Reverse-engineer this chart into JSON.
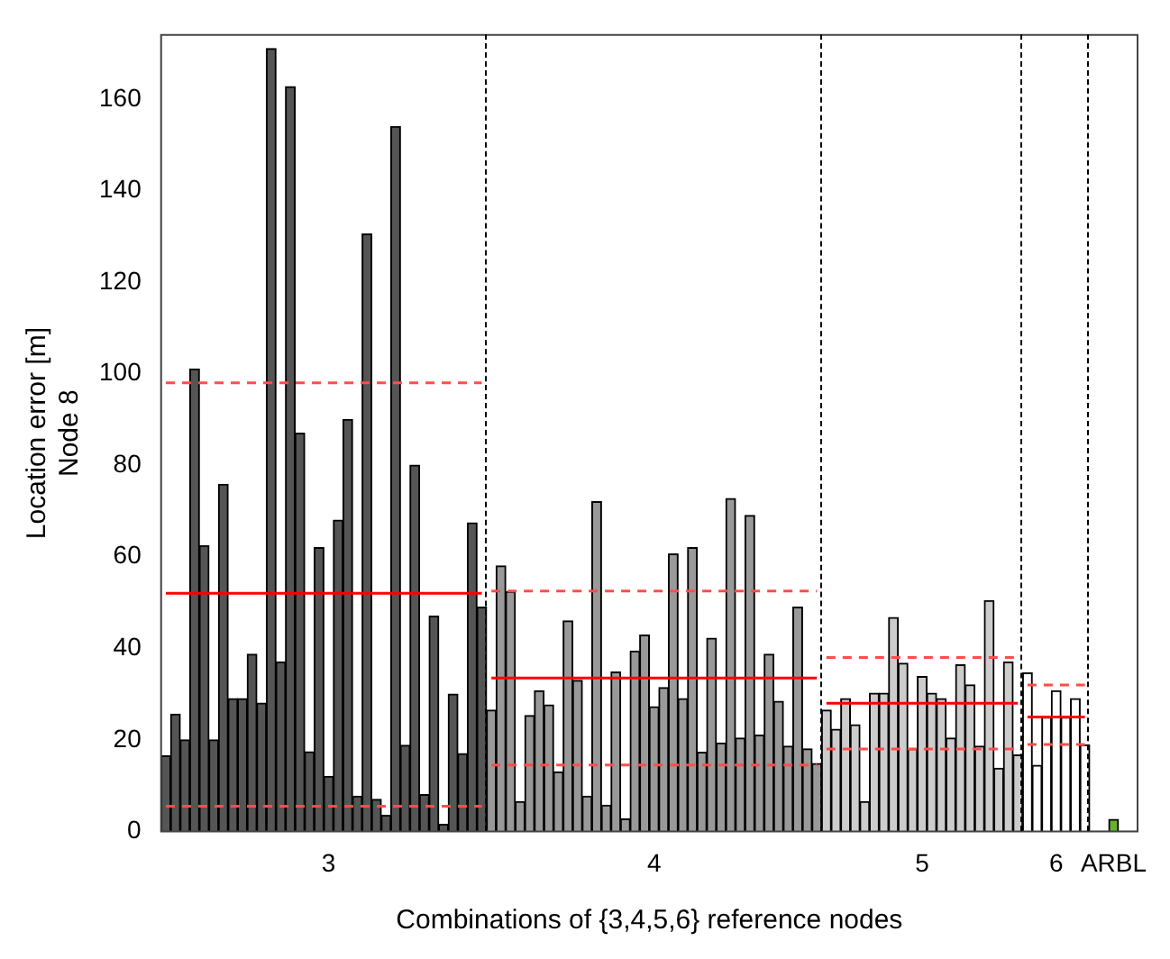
{
  "chart_data": {
    "type": "bar",
    "xlabel": "Combinations of {3,4,5,6} reference nodes",
    "ylabel": "Location error [m]\nNode 8",
    "categories": [
      null,
      null,
      null,
      null,
      null,
      null,
      null,
      null,
      null,
      null,
      null,
      null,
      null,
      null,
      null,
      null,
      null,
      "3",
      null,
      null,
      null,
      null,
      null,
      null,
      null,
      null,
      null,
      null,
      null,
      null,
      null,
      null,
      null,
      null,
      null,
      null,
      null,
      null,
      null,
      null,
      null,
      null,
      null,
      null,
      null,
      null,
      null,
      null,
      null,
      null,
      null,
      "4",
      null,
      null,
      null,
      null,
      null,
      null,
      null,
      null,
      null,
      null,
      null,
      null,
      null,
      null,
      null,
      null,
      null,
      null,
      null,
      null,
      null,
      null,
      null,
      null,
      null,
      null,
      null,
      "5",
      null,
      null,
      null,
      null,
      null,
      null,
      null,
      null,
      null,
      null,
      null,
      null,
      null,
      "6",
      null,
      null,
      null,
      null,
      null,
      "ARBL",
      null,
      null
    ],
    "ylim": [
      0,
      174
    ],
    "yticks": [
      0,
      20,
      40,
      60,
      80,
      100,
      120,
      140,
      160
    ],
    "grid": false,
    "legend": false,
    "series": [
      {
        "colors": [
          "#555555",
          "#555555",
          "#555555",
          "#555555",
          "#555555",
          "#555555",
          "#555555",
          "#555555",
          "#555555",
          "#555555",
          "#555555",
          "#555555",
          "#555555",
          "#555555",
          "#555555",
          "#555555",
          "#555555",
          "#555555",
          "#555555",
          "#555555",
          "#555555",
          "#555555",
          "#555555",
          "#555555",
          "#555555",
          "#555555",
          "#555555",
          "#555555",
          "#555555",
          "#555555",
          "#555555",
          "#555555",
          "#555555",
          "#555555",
          "#999999",
          "#999999",
          "#999999",
          "#999999",
          "#999999",
          "#999999",
          "#999999",
          "#999999",
          "#999999",
          "#999999",
          "#999999",
          "#999999",
          "#999999",
          "#999999",
          "#999999",
          "#999999",
          "#999999",
          "#999999",
          "#999999",
          "#999999",
          "#999999",
          "#999999",
          "#999999",
          "#999999",
          "#999999",
          "#999999",
          "#999999",
          "#999999",
          "#999999",
          "#999999",
          "#999999",
          "#999999",
          "#999999",
          "#999999",
          "#999999",
          "#cccccc",
          "#cccccc",
          "#cccccc",
          "#cccccc",
          "#cccccc",
          "#cccccc",
          "#cccccc",
          "#cccccc",
          "#cccccc",
          "#cccccc",
          "#cccccc",
          "#cccccc",
          "#cccccc",
          "#cccccc",
          "#cccccc",
          "#cccccc",
          "#cccccc",
          "#cccccc",
          "#cccccc",
          "#cccccc",
          "#cccccc",
          "#ffffff",
          "#ffffff",
          "#ffffff",
          "#ffffff",
          "#ffffff",
          "#ffffff",
          "#ffffff",
          "#ffffff",
          "#ffffff",
          "#66b032",
          "#ffffff",
          "#ffffff"
        ],
        "values": [
          16.5,
          25.6,
          20,
          101,
          62.4,
          20,
          75.8,
          29,
          29,
          38.7,
          28,
          171,
          37,
          162.7,
          87,
          17.4,
          62,
          12,
          68,
          90,
          7.7,
          130.5,
          7,
          3.5,
          154,
          18.8,
          80,
          8,
          47,
          1.5,
          30,
          17,
          67.4,
          49,
          26.5,
          58,
          52.4,
          6.5,
          25.3,
          30.7,
          27.6,
          13,
          46,
          33,
          7.7,
          72,
          5.7,
          34.8,
          2.7,
          39.4,
          42.9,
          27.2,
          31.4,
          60.6,
          29,
          62,
          17.3,
          42.2,
          19.3,
          72.7,
          20.4,
          69,
          21,
          38.7,
          28.4,
          18.6,
          49,
          18,
          14.8,
          26.5,
          22.3,
          29,
          23.3,
          6.5,
          30.2,
          30.2,
          46.7,
          36.7,
          18,
          33.8,
          30.2,
          29,
          20.4,
          36.4,
          32,
          18.6,
          50.4,
          13.8,
          37,
          16.7,
          34.6,
          14.4,
          24.9,
          30.7,
          24.9,
          29,
          18.9,
          null,
          null,
          2.6,
          null,
          null
        ]
      },
      {
        "type": "line",
        "color": "#ff0000",
        "line_style": "solid",
        "values": [
          52,
          52,
          52,
          52,
          52,
          52,
          52,
          52,
          52,
          52,
          52,
          52,
          52,
          52,
          52,
          52,
          52,
          52,
          52,
          52,
          52,
          52,
          52,
          52,
          52,
          52,
          52,
          52,
          52,
          52,
          52,
          52,
          52,
          52,
          null,
          null,
          null,
          null,
          null,
          null,
          null,
          null,
          null,
          null,
          null,
          null,
          null,
          null,
          null,
          null,
          null,
          null,
          null,
          null,
          null,
          null,
          null,
          null,
          null,
          null,
          null,
          null,
          null,
          null,
          null,
          null,
          null,
          null,
          null,
          null,
          null,
          null,
          null,
          null,
          null,
          null,
          null,
          null,
          null,
          null,
          null,
          null,
          null,
          null,
          null,
          null,
          null,
          null,
          null,
          null,
          null,
          null,
          null,
          null,
          null,
          null,
          null,
          null,
          null,
          null,
          null,
          null
        ]
      },
      {
        "type": "line",
        "color": "#ff4d4d",
        "line_style": "dashed",
        "values": [
          98,
          98,
          98,
          98,
          98,
          98,
          98,
          98,
          98,
          98,
          98,
          98,
          98,
          98,
          98,
          98,
          98,
          98,
          98,
          98,
          98,
          98,
          98,
          98,
          98,
          98,
          98,
          98,
          98,
          98,
          98,
          98,
          98,
          98,
          null,
          null,
          null,
          null,
          null,
          null,
          null,
          null,
          null,
          null,
          null,
          null,
          null,
          null,
          null,
          null,
          null,
          null,
          null,
          null,
          null,
          null,
          null,
          null,
          null,
          null,
          null,
          null,
          null,
          null,
          null,
          null,
          null,
          null,
          null,
          null,
          null,
          null,
          null,
          null,
          null,
          null,
          null,
          null,
          null,
          null,
          null,
          null,
          null,
          null,
          null,
          null,
          null,
          null,
          null,
          null,
          null,
          null,
          null,
          null,
          null,
          null,
          null,
          null,
          null,
          null,
          null,
          null
        ]
      },
      {
        "type": "line",
        "color": "#ff4d4d",
        "line_style": "dashed",
        "values": [
          5.5,
          5.5,
          5.5,
          5.5,
          5.5,
          5.5,
          5.5,
          5.5,
          5.5,
          5.5,
          5.5,
          5.5,
          5.5,
          5.5,
          5.5,
          5.5,
          5.5,
          5.5,
          5.5,
          5.5,
          5.5,
          5.5,
          5.5,
          5.5,
          5.5,
          5.5,
          5.5,
          5.5,
          5.5,
          5.5,
          5.5,
          5.5,
          5.5,
          5.5,
          null,
          null,
          null,
          null,
          null,
          null,
          null,
          null,
          null,
          null,
          null,
          null,
          null,
          null,
          null,
          null,
          null,
          null,
          null,
          null,
          null,
          null,
          null,
          null,
          null,
          null,
          null,
          null,
          null,
          null,
          null,
          null,
          null,
          null,
          null,
          null,
          null,
          null,
          null,
          null,
          null,
          null,
          null,
          null,
          null,
          null,
          null,
          null,
          null,
          null,
          null,
          null,
          null,
          null,
          null,
          null,
          null,
          null,
          null,
          null,
          null,
          null,
          null,
          null,
          null,
          null,
          null,
          null
        ]
      },
      {
        "type": "line",
        "color": "#ff0000",
        "line_style": "solid",
        "values": [
          null,
          null,
          null,
          null,
          null,
          null,
          null,
          null,
          null,
          null,
          null,
          null,
          null,
          null,
          null,
          null,
          null,
          null,
          null,
          null,
          null,
          null,
          null,
          null,
          null,
          null,
          null,
          null,
          null,
          null,
          null,
          null,
          null,
          null,
          33.5,
          33.5,
          33.5,
          33.5,
          33.5,
          33.5,
          33.5,
          33.5,
          33.5,
          33.5,
          33.5,
          33.5,
          33.5,
          33.5,
          33.5,
          33.5,
          33.5,
          33.5,
          33.5,
          33.5,
          33.5,
          33.5,
          33.5,
          33.5,
          33.5,
          33.5,
          33.5,
          33.5,
          33.5,
          33.5,
          33.5,
          33.5,
          33.5,
          33.5,
          33.5,
          null,
          null,
          null,
          null,
          null,
          null,
          null,
          null,
          null,
          null,
          null,
          null,
          null,
          null,
          null,
          null,
          null,
          null,
          null,
          null,
          null,
          null,
          null,
          null,
          null,
          null,
          null,
          null,
          null,
          null,
          null,
          null,
          null
        ]
      },
      {
        "type": "line",
        "color": "#ff4d4d",
        "line_style": "dashed",
        "values": [
          null,
          null,
          null,
          null,
          null,
          null,
          null,
          null,
          null,
          null,
          null,
          null,
          null,
          null,
          null,
          null,
          null,
          null,
          null,
          null,
          null,
          null,
          null,
          null,
          null,
          null,
          null,
          null,
          null,
          null,
          null,
          null,
          null,
          null,
          52.5,
          52.5,
          52.5,
          52.5,
          52.5,
          52.5,
          52.5,
          52.5,
          52.5,
          52.5,
          52.5,
          52.5,
          52.5,
          52.5,
          52.5,
          52.5,
          52.5,
          52.5,
          52.5,
          52.5,
          52.5,
          52.5,
          52.5,
          52.5,
          52.5,
          52.5,
          52.5,
          52.5,
          52.5,
          52.5,
          52.5,
          52.5,
          52.5,
          52.5,
          52.5,
          null,
          null,
          null,
          null,
          null,
          null,
          null,
          null,
          null,
          null,
          null,
          null,
          null,
          null,
          null,
          null,
          null,
          null,
          null,
          null,
          null,
          null,
          null,
          null,
          null,
          null,
          null,
          null,
          null,
          null,
          null,
          null,
          null
        ]
      },
      {
        "type": "line",
        "color": "#ff4d4d",
        "line_style": "dashed",
        "values": [
          null,
          null,
          null,
          null,
          null,
          null,
          null,
          null,
          null,
          null,
          null,
          null,
          null,
          null,
          null,
          null,
          null,
          null,
          null,
          null,
          null,
          null,
          null,
          null,
          null,
          null,
          null,
          null,
          null,
          null,
          null,
          null,
          null,
          null,
          14.5,
          14.5,
          14.5,
          14.5,
          14.5,
          14.5,
          14.5,
          14.5,
          14.5,
          14.5,
          14.5,
          14.5,
          14.5,
          14.5,
          14.5,
          14.5,
          14.5,
          14.5,
          14.5,
          14.5,
          14.5,
          14.5,
          14.5,
          14.5,
          14.5,
          14.5,
          14.5,
          14.5,
          14.5,
          14.5,
          14.5,
          14.5,
          14.5,
          14.5,
          14.5,
          null,
          null,
          null,
          null,
          null,
          null,
          null,
          null,
          null,
          null,
          null,
          null,
          null,
          null,
          null,
          null,
          null,
          null,
          null,
          null,
          null,
          null,
          null,
          null,
          null,
          null,
          null,
          null,
          null,
          null,
          null,
          null,
          null
        ]
      },
      {
        "type": "line",
        "color": "#ff0000",
        "line_style": "solid",
        "values": [
          null,
          null,
          null,
          null,
          null,
          null,
          null,
          null,
          null,
          null,
          null,
          null,
          null,
          null,
          null,
          null,
          null,
          null,
          null,
          null,
          null,
          null,
          null,
          null,
          null,
          null,
          null,
          null,
          null,
          null,
          null,
          null,
          null,
          null,
          null,
          null,
          null,
          null,
          null,
          null,
          null,
          null,
          null,
          null,
          null,
          null,
          null,
          null,
          null,
          null,
          null,
          null,
          null,
          null,
          null,
          null,
          null,
          null,
          null,
          null,
          null,
          null,
          null,
          null,
          null,
          null,
          null,
          null,
          null,
          28,
          28,
          28,
          28,
          28,
          28,
          28,
          28,
          28,
          28,
          28,
          28,
          28,
          28,
          28,
          28,
          28,
          28,
          28,
          28,
          28,
          null,
          null,
          null,
          null,
          null,
          null,
          null,
          null,
          null,
          null,
          null,
          null
        ]
      },
      {
        "type": "line",
        "color": "#ff4d4d",
        "line_style": "dashed",
        "values": [
          null,
          null,
          null,
          null,
          null,
          null,
          null,
          null,
          null,
          null,
          null,
          null,
          null,
          null,
          null,
          null,
          null,
          null,
          null,
          null,
          null,
          null,
          null,
          null,
          null,
          null,
          null,
          null,
          null,
          null,
          null,
          null,
          null,
          null,
          null,
          null,
          null,
          null,
          null,
          null,
          null,
          null,
          null,
          null,
          null,
          null,
          null,
          null,
          null,
          null,
          null,
          null,
          null,
          null,
          null,
          null,
          null,
          null,
          null,
          null,
          null,
          null,
          null,
          null,
          null,
          null,
          null,
          null,
          null,
          38,
          38,
          38,
          38,
          38,
          38,
          38,
          38,
          38,
          38,
          38,
          38,
          38,
          38,
          38,
          38,
          38,
          38,
          38,
          38,
          38,
          null,
          null,
          null,
          null,
          null,
          null,
          null,
          null,
          null,
          null,
          null,
          null
        ]
      },
      {
        "type": "line",
        "color": "#ff4d4d",
        "line_style": "dashed",
        "values": [
          null,
          null,
          null,
          null,
          null,
          null,
          null,
          null,
          null,
          null,
          null,
          null,
          null,
          null,
          null,
          null,
          null,
          null,
          null,
          null,
          null,
          null,
          null,
          null,
          null,
          null,
          null,
          null,
          null,
          null,
          null,
          null,
          null,
          null,
          null,
          null,
          null,
          null,
          null,
          null,
          null,
          null,
          null,
          null,
          null,
          null,
          null,
          null,
          null,
          null,
          null,
          null,
          null,
          null,
          null,
          null,
          null,
          null,
          null,
          null,
          null,
          null,
          null,
          null,
          null,
          null,
          null,
          null,
          null,
          18,
          18,
          18,
          18,
          18,
          18,
          18,
          18,
          18,
          18,
          18,
          18,
          18,
          18,
          18,
          18,
          18,
          18,
          18,
          18,
          18,
          null,
          null,
          null,
          null,
          null,
          null,
          null,
          null,
          null,
          null,
          null,
          null
        ]
      },
      {
        "type": "line",
        "color": "#ff0000",
        "line_style": "solid",
        "values": [
          null,
          null,
          null,
          null,
          null,
          null,
          null,
          null,
          null,
          null,
          null,
          null,
          null,
          null,
          null,
          null,
          null,
          null,
          null,
          null,
          null,
          null,
          null,
          null,
          null,
          null,
          null,
          null,
          null,
          null,
          null,
          null,
          null,
          null,
          null,
          null,
          null,
          null,
          null,
          null,
          null,
          null,
          null,
          null,
          null,
          null,
          null,
          null,
          null,
          null,
          null,
          null,
          null,
          null,
          null,
          null,
          null,
          null,
          null,
          null,
          null,
          null,
          null,
          null,
          null,
          null,
          null,
          null,
          null,
          null,
          null,
          null,
          null,
          null,
          null,
          null,
          null,
          null,
          null,
          null,
          null,
          null,
          null,
          null,
          null,
          null,
          null,
          null,
          null,
          null,
          25,
          25,
          25,
          25,
          25,
          25,
          25,
          null,
          null,
          null,
          null,
          null
        ]
      },
      {
        "type": "line",
        "color": "#ff4d4d",
        "line_style": "dashed",
        "values": [
          null,
          null,
          null,
          null,
          null,
          null,
          null,
          null,
          null,
          null,
          null,
          null,
          null,
          null,
          null,
          null,
          null,
          null,
          null,
          null,
          null,
          null,
          null,
          null,
          null,
          null,
          null,
          null,
          null,
          null,
          null,
          null,
          null,
          null,
          null,
          null,
          null,
          null,
          null,
          null,
          null,
          null,
          null,
          null,
          null,
          null,
          null,
          null,
          null,
          null,
          null,
          null,
          null,
          null,
          null,
          null,
          null,
          null,
          null,
          null,
          null,
          null,
          null,
          null,
          null,
          null,
          null,
          null,
          null,
          null,
          null,
          null,
          null,
          null,
          null,
          null,
          null,
          null,
          null,
          null,
          null,
          null,
          null,
          null,
          null,
          null,
          null,
          null,
          null,
          null,
          32,
          32,
          32,
          32,
          32,
          32,
          32,
          null,
          null,
          null,
          null,
          null
        ]
      },
      {
        "type": "line",
        "color": "#ff4d4d",
        "line_style": "dashed",
        "values": [
          null,
          null,
          null,
          null,
          null,
          null,
          null,
          null,
          null,
          null,
          null,
          null,
          null,
          null,
          null,
          null,
          null,
          null,
          null,
          null,
          null,
          null,
          null,
          null,
          null,
          null,
          null,
          null,
          null,
          null,
          null,
          null,
          null,
          null,
          null,
          null,
          null,
          null,
          null,
          null,
          null,
          null,
          null,
          null,
          null,
          null,
          null,
          null,
          null,
          null,
          null,
          null,
          null,
          null,
          null,
          null,
          null,
          null,
          null,
          null,
          null,
          null,
          null,
          null,
          null,
          null,
          null,
          null,
          null,
          null,
          null,
          null,
          null,
          null,
          null,
          null,
          null,
          null,
          null,
          null,
          null,
          null,
          null,
          null,
          null,
          null,
          null,
          null,
          null,
          null,
          19,
          19,
          19,
          19,
          19,
          19,
          19,
          null,
          null,
          null,
          null,
          null
        ]
      }
    ]
  }
}
